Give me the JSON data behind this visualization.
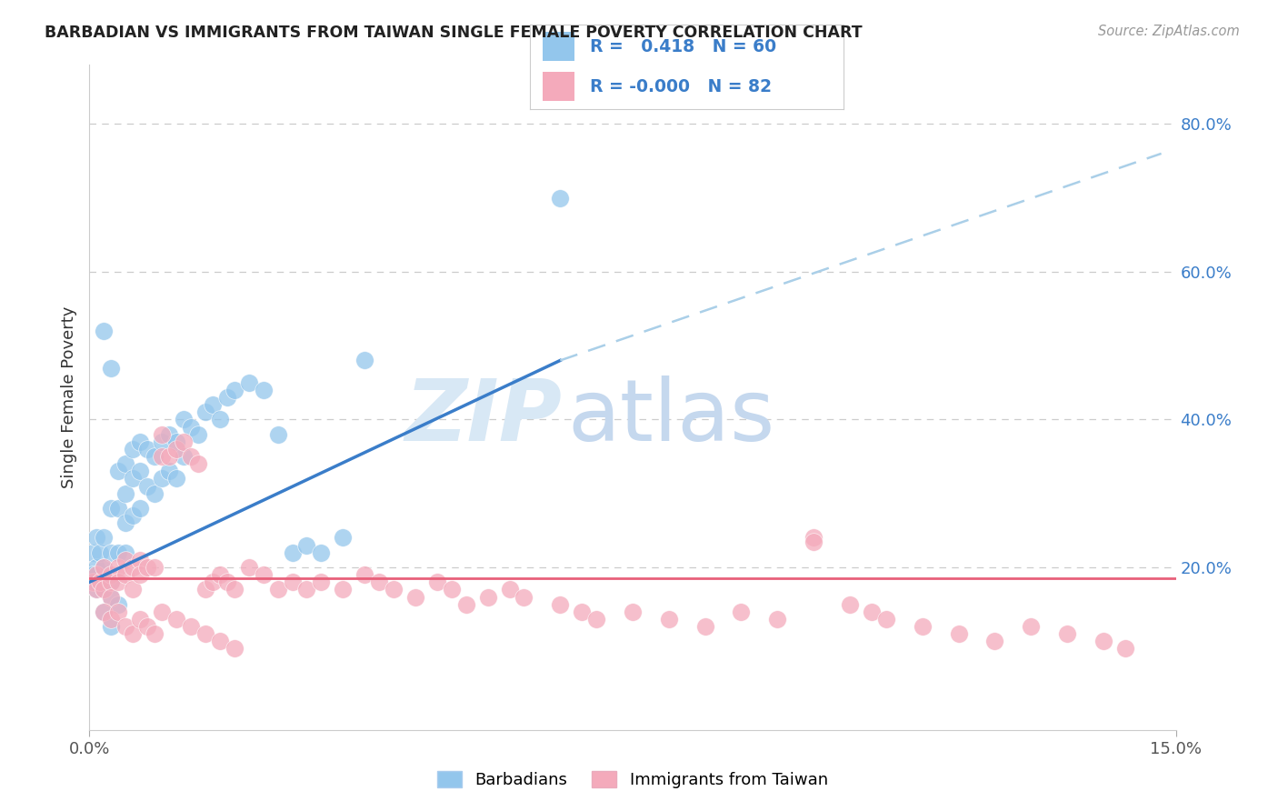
{
  "title": "BARBADIAN VS IMMIGRANTS FROM TAIWAN SINGLE FEMALE POVERTY CORRELATION CHART",
  "source": "Source: ZipAtlas.com",
  "ylabel": "Single Female Poverty",
  "y_ticks": [
    0.2,
    0.4,
    0.6,
    0.8
  ],
  "y_tick_labels": [
    "20.0%",
    "40.0%",
    "60.0%",
    "80.0%"
  ],
  "x_min": 0.0,
  "x_max": 0.15,
  "y_min": -0.02,
  "y_max": 0.88,
  "r_blue": 0.418,
  "n_blue": 60,
  "r_pink": -0.0,
  "n_pink": 82,
  "blue_color": "#93C6EC",
  "pink_color": "#F4AABB",
  "blue_line_color": "#3A7DC9",
  "pink_line_color": "#E8607A",
  "dashed_line_color": "#AACFE8",
  "watermark_zip_color": "#D8E8F5",
  "watermark_atlas_color": "#C5D8EE",
  "background_color": "#FFFFFF",
  "blue_x": [
    0.0005,
    0.001,
    0.001,
    0.0015,
    0.002,
    0.002,
    0.002,
    0.003,
    0.003,
    0.003,
    0.003,
    0.004,
    0.004,
    0.004,
    0.005,
    0.005,
    0.005,
    0.005,
    0.006,
    0.006,
    0.006,
    0.007,
    0.007,
    0.007,
    0.008,
    0.008,
    0.009,
    0.009,
    0.01,
    0.01,
    0.011,
    0.011,
    0.012,
    0.012,
    0.013,
    0.013,
    0.014,
    0.015,
    0.016,
    0.017,
    0.018,
    0.019,
    0.02,
    0.022,
    0.024,
    0.026,
    0.028,
    0.03,
    0.032,
    0.035,
    0.001,
    0.002,
    0.003,
    0.004,
    0.0005,
    0.001,
    0.002,
    0.003,
    0.065,
    0.038
  ],
  "blue_y": [
    0.22,
    0.24,
    0.2,
    0.22,
    0.52,
    0.24,
    0.2,
    0.47,
    0.28,
    0.22,
    0.18,
    0.33,
    0.28,
    0.22,
    0.34,
    0.3,
    0.26,
    0.22,
    0.36,
    0.32,
    0.27,
    0.37,
    0.33,
    0.28,
    0.36,
    0.31,
    0.35,
    0.3,
    0.37,
    0.32,
    0.38,
    0.33,
    0.37,
    0.32,
    0.4,
    0.35,
    0.39,
    0.38,
    0.41,
    0.42,
    0.4,
    0.43,
    0.44,
    0.45,
    0.44,
    0.38,
    0.22,
    0.23,
    0.22,
    0.24,
    0.17,
    0.17,
    0.16,
    0.15,
    0.19,
    0.18,
    0.14,
    0.12,
    0.7,
    0.48
  ],
  "pink_x": [
    0.0005,
    0.001,
    0.001,
    0.0015,
    0.002,
    0.002,
    0.003,
    0.003,
    0.003,
    0.004,
    0.004,
    0.005,
    0.005,
    0.006,
    0.006,
    0.007,
    0.007,
    0.008,
    0.009,
    0.01,
    0.01,
    0.011,
    0.012,
    0.013,
    0.014,
    0.015,
    0.016,
    0.017,
    0.018,
    0.019,
    0.02,
    0.022,
    0.024,
    0.026,
    0.028,
    0.03,
    0.032,
    0.035,
    0.038,
    0.04,
    0.042,
    0.045,
    0.048,
    0.05,
    0.052,
    0.055,
    0.058,
    0.06,
    0.065,
    0.068,
    0.07,
    0.075,
    0.08,
    0.085,
    0.09,
    0.095,
    0.1,
    0.1,
    0.105,
    0.108,
    0.11,
    0.115,
    0.12,
    0.125,
    0.13,
    0.135,
    0.14,
    0.143,
    0.002,
    0.003,
    0.004,
    0.005,
    0.006,
    0.007,
    0.008,
    0.009,
    0.01,
    0.012,
    0.014,
    0.016,
    0.018,
    0.02
  ],
  "pink_y": [
    0.18,
    0.19,
    0.17,
    0.18,
    0.2,
    0.17,
    0.19,
    0.18,
    0.16,
    0.2,
    0.18,
    0.21,
    0.19,
    0.2,
    0.17,
    0.21,
    0.19,
    0.2,
    0.2,
    0.35,
    0.38,
    0.35,
    0.36,
    0.37,
    0.35,
    0.34,
    0.17,
    0.18,
    0.19,
    0.18,
    0.17,
    0.2,
    0.19,
    0.17,
    0.18,
    0.17,
    0.18,
    0.17,
    0.19,
    0.18,
    0.17,
    0.16,
    0.18,
    0.17,
    0.15,
    0.16,
    0.17,
    0.16,
    0.15,
    0.14,
    0.13,
    0.14,
    0.13,
    0.12,
    0.14,
    0.13,
    0.24,
    0.235,
    0.15,
    0.14,
    0.13,
    0.12,
    0.11,
    0.1,
    0.12,
    0.11,
    0.1,
    0.09,
    0.14,
    0.13,
    0.14,
    0.12,
    0.11,
    0.13,
    0.12,
    0.11,
    0.14,
    0.13,
    0.12,
    0.11,
    0.1,
    0.09
  ],
  "blue_line_x0": 0.0,
  "blue_line_y0": 0.18,
  "blue_line_x1": 0.065,
  "blue_line_y1": 0.48,
  "dash_line_x0": 0.065,
  "dash_line_y0": 0.48,
  "dash_line_x1": 0.148,
  "dash_line_y1": 0.76,
  "pink_line_y": 0.185
}
